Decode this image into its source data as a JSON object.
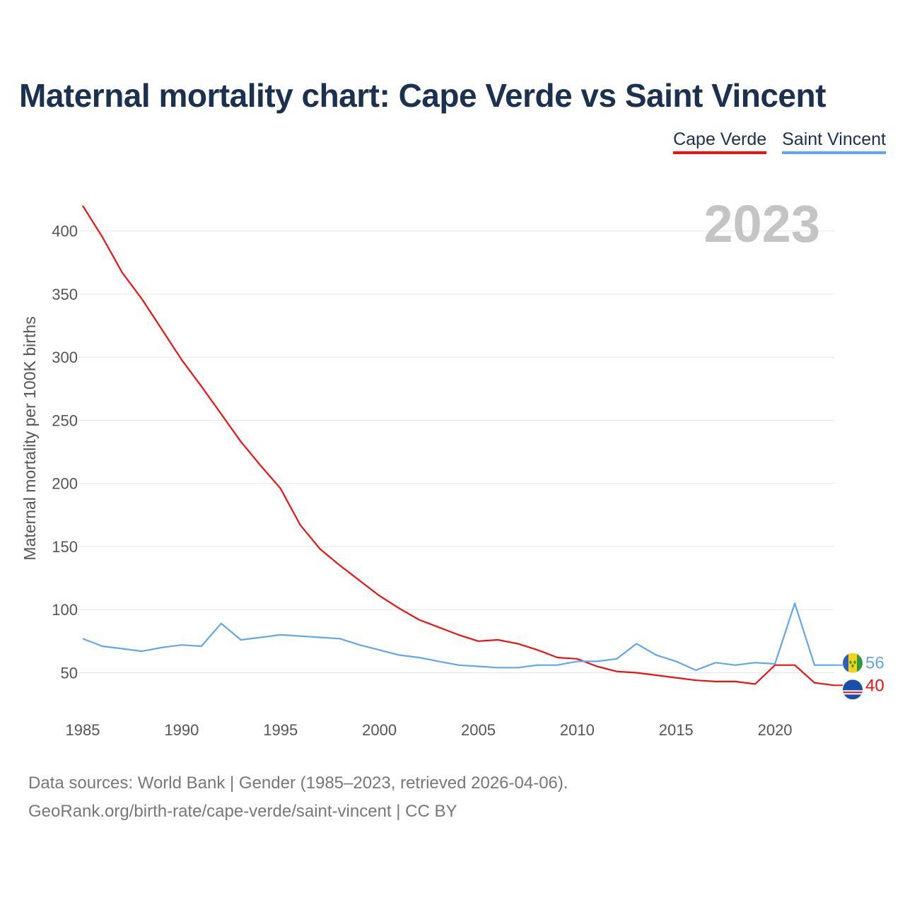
{
  "title": "Maternal mortality chart: Cape Verde vs Saint Vincent",
  "legend": [
    {
      "name": "Cape Verde",
      "color": "#ee1111"
    },
    {
      "name": "Saint Vincent",
      "color": "#63a6e8"
    }
  ],
  "year_label": "2023",
  "source_line1": "Data sources: World Bank | Gender (1985–2023, retrieved 2026-04-06).",
  "source_line2": "GeoRank.org/birth-rate/cape-verde/saint-vincent | CC BY",
  "chart_data": {
    "type": "line",
    "title": "Maternal mortality chart: Cape Verde vs Saint Vincent",
    "xlabel": "",
    "ylabel": "Maternal mortality per 100K births",
    "xlim": [
      1985,
      2023
    ],
    "ylim": [
      20,
      420
    ],
    "x_ticks": [
      1985,
      1990,
      1995,
      2000,
      2005,
      2010,
      2015,
      2020
    ],
    "y_ticks": [
      50,
      100,
      150,
      200,
      250,
      300,
      350,
      400
    ],
    "grid": true,
    "x": [
      1985,
      1986,
      1987,
      1988,
      1989,
      1990,
      1991,
      1992,
      1993,
      1994,
      1995,
      1996,
      1997,
      1998,
      1999,
      2000,
      2001,
      2002,
      2003,
      2004,
      2005,
      2006,
      2007,
      2008,
      2009,
      2010,
      2011,
      2012,
      2013,
      2014,
      2015,
      2016,
      2017,
      2018,
      2019,
      2020,
      2021,
      2022,
      2023
    ],
    "series": [
      {
        "name": "Cape Verde",
        "color": "#ee1111",
        "end_label": "40",
        "values": [
          420,
          395,
          367,
          346,
          322,
          298,
          277,
          255,
          233,
          214,
          196,
          167,
          148,
          135,
          123,
          111,
          101,
          92,
          86,
          80,
          75,
          76,
          73,
          68,
          62,
          61,
          55,
          51,
          50,
          48,
          46,
          44,
          43,
          43,
          41,
          56,
          56,
          42,
          40
        ]
      },
      {
        "name": "Saint Vincent",
        "color": "#63a6e8",
        "end_label": "56",
        "values": [
          77,
          71,
          69,
          67,
          70,
          72,
          71,
          89,
          76,
          78,
          80,
          79,
          78,
          77,
          72,
          68,
          64,
          62,
          59,
          56,
          55,
          54,
          54,
          56,
          56,
          59,
          59,
          61,
          73,
          64,
          59,
          52,
          58,
          56,
          58,
          57,
          105,
          56,
          56
        ]
      }
    ]
  }
}
